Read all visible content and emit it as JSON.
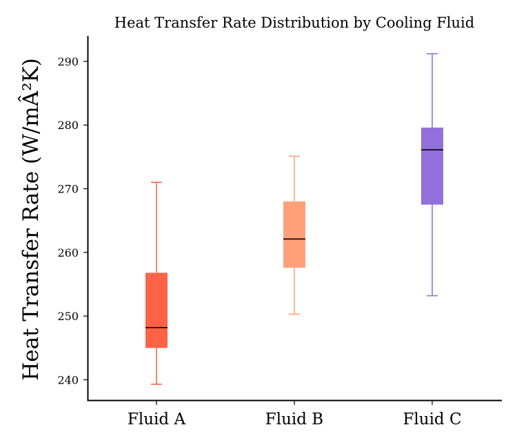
{
  "chart_data": {
    "type": "box",
    "title": "Heat Transfer Rate Distribution by Cooling Fluid",
    "xlabel": "",
    "ylabel": "Heat Transfer Rate (W/mÂ²K)",
    "categories": [
      "Fluid A",
      "Fluid B",
      "Fluid C"
    ],
    "colors": [
      "#ff6347",
      "#ffa07a",
      "#9370db"
    ],
    "yticks": [
      240,
      250,
      260,
      270,
      280,
      290
    ],
    "ylim": [
      236.8,
      294.0
    ],
    "grid": false,
    "boxes": [
      {
        "name": "Fluid A",
        "whisker_low": 239.3,
        "q1": 245.0,
        "median": 248.2,
        "q3": 256.8,
        "whisker_high": 271.0
      },
      {
        "name": "Fluid B",
        "whisker_low": 250.3,
        "q1": 257.6,
        "median": 262.1,
        "q3": 268.0,
        "whisker_high": 275.1
      },
      {
        "name": "Fluid C",
        "whisker_low": 253.2,
        "q1": 267.5,
        "median": 276.1,
        "q3": 279.6,
        "whisker_high": 291.2
      }
    ]
  }
}
